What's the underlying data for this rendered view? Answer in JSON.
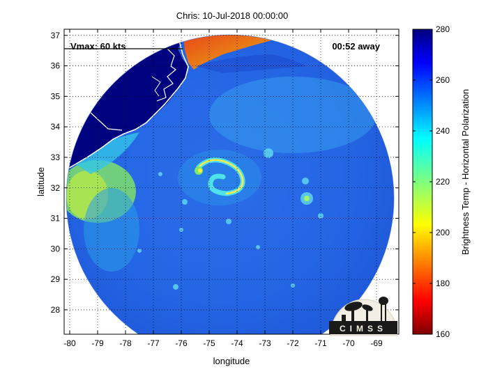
{
  "title": "Chris: 10-Jul-2018 00:00:00",
  "annotations": {
    "vmax": "Vmax: 60 kts",
    "time_away": "00:52 away"
  },
  "axes": {
    "xlabel": "longitude",
    "ylabel": "latitude",
    "xlim": [
      -80.2,
      -68.2
    ],
    "ylim": [
      27.2,
      37.2
    ],
    "xticks": [
      "-80",
      "-79",
      "-78",
      "-77",
      "-76",
      "-75",
      "-74",
      "-73",
      "-72",
      "-71",
      "-70",
      "-69"
    ],
    "xtick_values": [
      -80,
      -79,
      -78,
      -77,
      -76,
      -75,
      -74,
      -73,
      -72,
      -71,
      -70,
      -69
    ],
    "yticks": [
      "28",
      "29",
      "30",
      "31",
      "32",
      "33",
      "34",
      "35",
      "36",
      "37"
    ],
    "ytick_values": [
      28,
      29,
      30,
      31,
      32,
      33,
      34,
      35,
      36,
      37
    ],
    "grid": true
  },
  "colorbar": {
    "label": "Brightness Temp - Horizontal Polarization",
    "ticks": [
      "160",
      "180",
      "200",
      "220",
      "240",
      "260",
      "280"
    ],
    "tick_values": [
      160,
      180,
      200,
      220,
      240,
      260,
      280
    ],
    "range": [
      160,
      280
    ],
    "colormap": "jet"
  },
  "logo": {
    "text": "CIMSS"
  },
  "colors": {
    "ocean": "#1e5ee6",
    "land": "#00037f",
    "coastline": "#ffffff",
    "warm": "#ff8a00"
  }
}
